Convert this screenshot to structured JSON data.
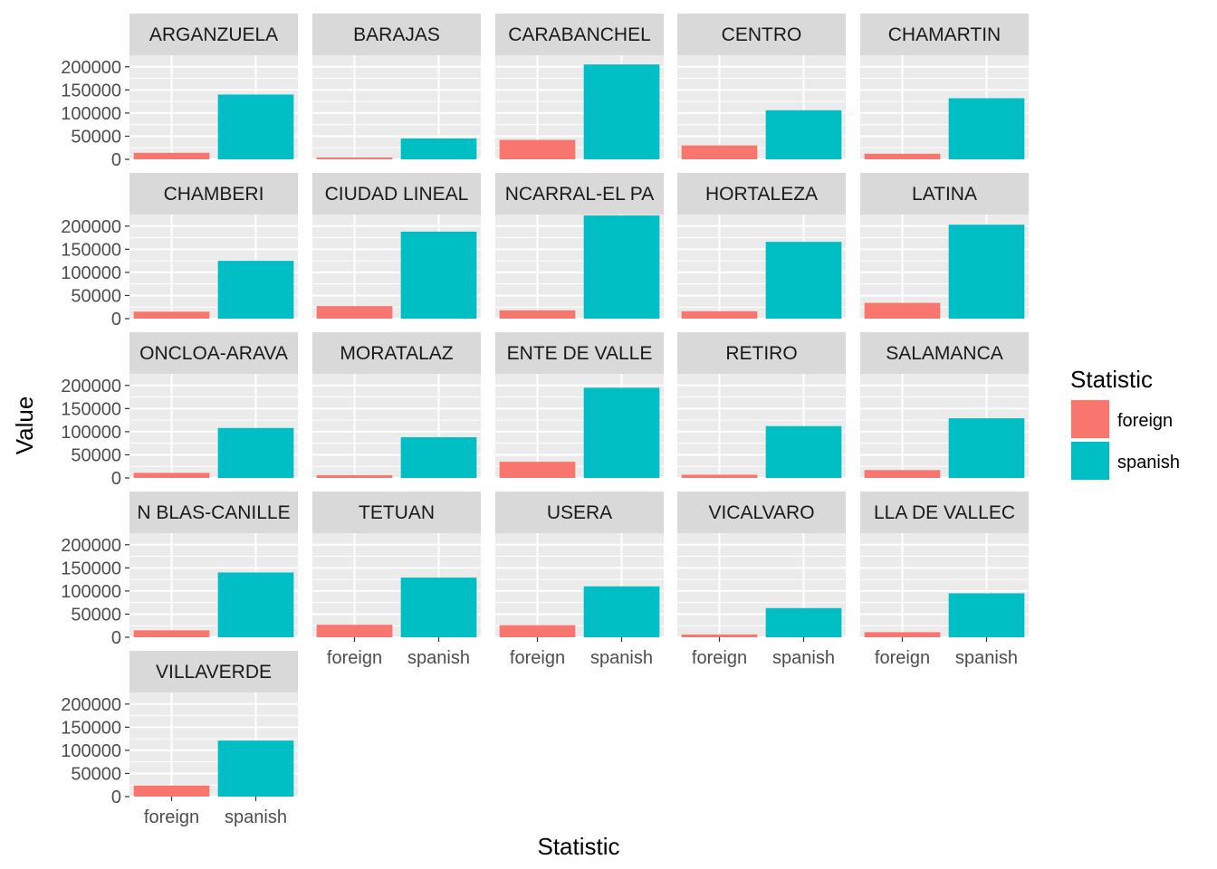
{
  "chart_data": {
    "type": "bar",
    "layout": "facet_wrap",
    "xlabel": "Statistic",
    "ylabel": "Value",
    "ylim": [
      0,
      225000
    ],
    "yticks": [
      0,
      50000,
      100000,
      150000,
      200000
    ],
    "ytick_labels": [
      "0",
      "50000",
      "100000",
      "150000",
      "200000"
    ],
    "categories": [
      "foreign",
      "spanish"
    ],
    "grid": true,
    "colors": {
      "foreign": "#F8766D",
      "spanish": "#00BFC4",
      "panel_bg": "#EBEBEB",
      "strip_bg": "#D9D9D9"
    },
    "legend": {
      "title": "Statistic",
      "placement": "right",
      "entries": [
        "foreign",
        "spanish"
      ]
    },
    "panels": [
      {
        "name": "ARGANZUELA",
        "values": [
          14000,
          140000
        ]
      },
      {
        "name": "BARAJAS",
        "values": [
          4000,
          45000
        ]
      },
      {
        "name": "CARABANCHEL",
        "values": [
          42000,
          205000
        ]
      },
      {
        "name": "CENTRO",
        "values": [
          30000,
          106000
        ]
      },
      {
        "name": "CHAMARTIN",
        "values": [
          12000,
          132000
        ]
      },
      {
        "name": "CHAMBERI",
        "values": [
          15000,
          125000
        ]
      },
      {
        "name": "CIUDAD LINEAL",
        "values": [
          27000,
          188000
        ]
      },
      {
        "name": "NCARRAL-EL PA",
        "values": [
          18000,
          223000
        ]
      },
      {
        "name": "HORTALEZA",
        "values": [
          16000,
          166000
        ]
      },
      {
        "name": "LATINA",
        "values": [
          34000,
          203000
        ]
      },
      {
        "name": "ONCLOA-ARAVA",
        "values": [
          11000,
          108000
        ]
      },
      {
        "name": "MORATALAZ",
        "values": [
          6000,
          88000
        ]
      },
      {
        "name": "ENTE DE VALLE",
        "values": [
          35000,
          195000
        ]
      },
      {
        "name": "RETIRO",
        "values": [
          7000,
          112000
        ]
      },
      {
        "name": "SALAMANCA",
        "values": [
          17000,
          129000
        ]
      },
      {
        "name": "N BLAS-CANILLE",
        "values": [
          15000,
          140000
        ]
      },
      {
        "name": "TETUAN",
        "values": [
          27000,
          129000
        ]
      },
      {
        "name": "USERA",
        "values": [
          26000,
          110000
        ]
      },
      {
        "name": "VICALVARO",
        "values": [
          6000,
          63000
        ]
      },
      {
        "name": "LLA DE VALLEC",
        "values": [
          11000,
          95000
        ]
      },
      {
        "name": "VILLAVERDE",
        "values": [
          24000,
          121000
        ]
      }
    ]
  }
}
